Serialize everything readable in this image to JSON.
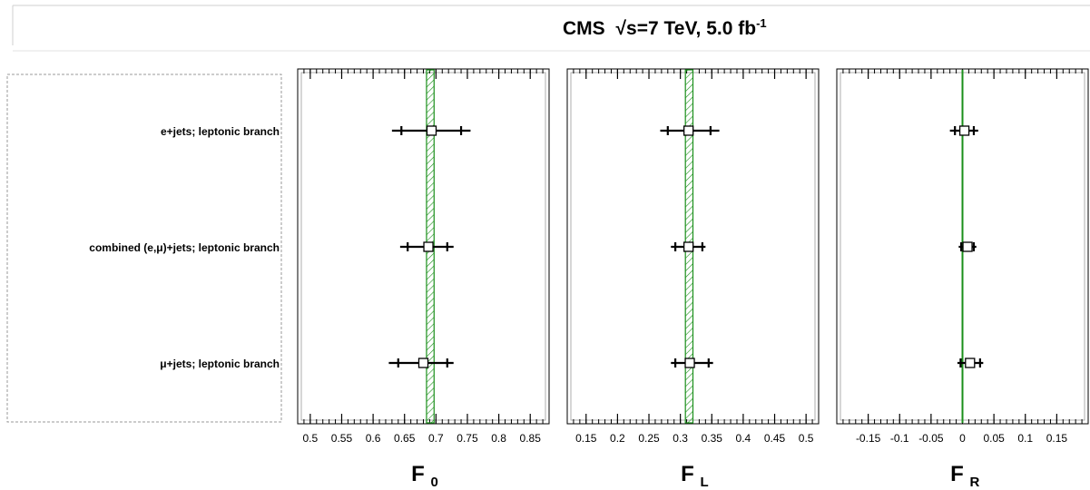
{
  "header": {
    "title_main": "CMS",
    "sqrt_s": "7 TeV,",
    "lumi": "5.0 fb",
    "lumi_exp": "-1"
  },
  "rows": [
    "e+jets; leptonic branch",
    "combined (e,μ)+jets; leptonic branch",
    "μ+jets; leptonic branch"
  ],
  "colors": {
    "band": "#1a8f1a",
    "marker": "#000000",
    "frame": "#000000"
  },
  "chart_data": [
    {
      "type": "scatter",
      "panel": "F0",
      "xlabel": "F",
      "xlabel_sub": "0",
      "xlim": [
        0.48,
        0.88
      ],
      "ticks": [
        0.5,
        0.55,
        0.6,
        0.65,
        0.7,
        0.75,
        0.8,
        0.85
      ],
      "tick_labels": [
        "0.5",
        "0.55",
        "0.6",
        "0.65",
        "0.7",
        "0.75",
        "0.8",
        "0.85"
      ],
      "band": [
        0.685,
        0.697
      ],
      "points": [
        {
          "row": 0,
          "value": 0.693,
          "stat": [
            0.645,
            0.74
          ],
          "total": [
            0.63,
            0.755
          ]
        },
        {
          "row": 1,
          "value": 0.688,
          "stat": [
            0.655,
            0.718
          ],
          "total": [
            0.643,
            0.728
          ]
        },
        {
          "row": 2,
          "value": 0.68,
          "stat": [
            0.64,
            0.718
          ],
          "total": [
            0.625,
            0.728
          ]
        }
      ]
    },
    {
      "type": "scatter",
      "panel": "FL",
      "xlabel": "F",
      "xlabel_sub": "L",
      "xlim": [
        0.12,
        0.52
      ],
      "ticks": [
        0.15,
        0.2,
        0.25,
        0.3,
        0.35,
        0.4,
        0.45,
        0.5
      ],
      "tick_labels": [
        "0.15",
        "0.2",
        "0.25",
        "0.3",
        "0.35",
        "0.4",
        "0.45",
        "0.5"
      ],
      "band": [
        0.308,
        0.32
      ],
      "points": [
        {
          "row": 0,
          "value": 0.313,
          "stat": [
            0.28,
            0.348
          ],
          "total": [
            0.268,
            0.362
          ]
        },
        {
          "row": 1,
          "value": 0.313,
          "stat": [
            0.292,
            0.335
          ],
          "total": [
            0.285,
            0.34
          ]
        },
        {
          "row": 2,
          "value": 0.315,
          "stat": [
            0.292,
            0.345
          ],
          "total": [
            0.285,
            0.352
          ]
        }
      ]
    },
    {
      "type": "scatter",
      "panel": "FR",
      "xlabel": "F",
      "xlabel_sub": "R",
      "xlim": [
        -0.2,
        0.2
      ],
      "ticks": [
        -0.15,
        -0.1,
        -0.05,
        0,
        0.05,
        0.1,
        0.15
      ],
      "tick_labels": [
        "-0.15",
        "-0.1",
        "-0.05",
        "0",
        "0.05",
        "0.1",
        "0.15"
      ],
      "band": [
        -0.001,
        0.001
      ],
      "points": [
        {
          "row": 0,
          "value": 0.003,
          "stat": [
            -0.012,
            0.018
          ],
          "total": [
            -0.02,
            0.025
          ]
        },
        {
          "row": 1,
          "value": 0.008,
          "stat": [
            -0.002,
            0.018
          ],
          "total": [
            -0.006,
            0.022
          ]
        },
        {
          "row": 2,
          "value": 0.012,
          "stat": [
            -0.003,
            0.028
          ],
          "total": [
            -0.008,
            0.033
          ]
        }
      ]
    }
  ]
}
